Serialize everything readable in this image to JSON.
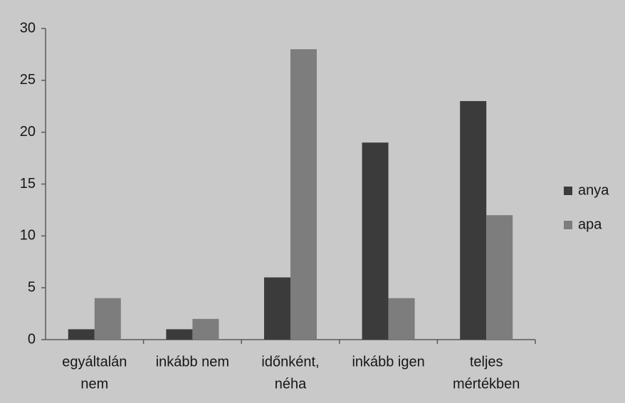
{
  "chart_data": {
    "type": "bar",
    "categories": [
      [
        "egyáltalán",
        "nem"
      ],
      [
        "inkább nem"
      ],
      [
        "időnként,",
        "néha"
      ],
      [
        "inkább igen"
      ],
      [
        "teljes",
        "mértékben"
      ]
    ],
    "series": [
      {
        "name": "anya",
        "color": "#3b3b3b",
        "values": [
          1,
          1,
          6,
          19,
          23
        ]
      },
      {
        "name": "apa",
        "color": "#7d7d7d",
        "values": [
          4,
          2,
          28,
          4,
          12
        ]
      }
    ],
    "ylim": [
      0,
      30
    ],
    "yticks": [
      0,
      5,
      10,
      15,
      20,
      25,
      30
    ],
    "grid": false,
    "legend": "right"
  }
}
